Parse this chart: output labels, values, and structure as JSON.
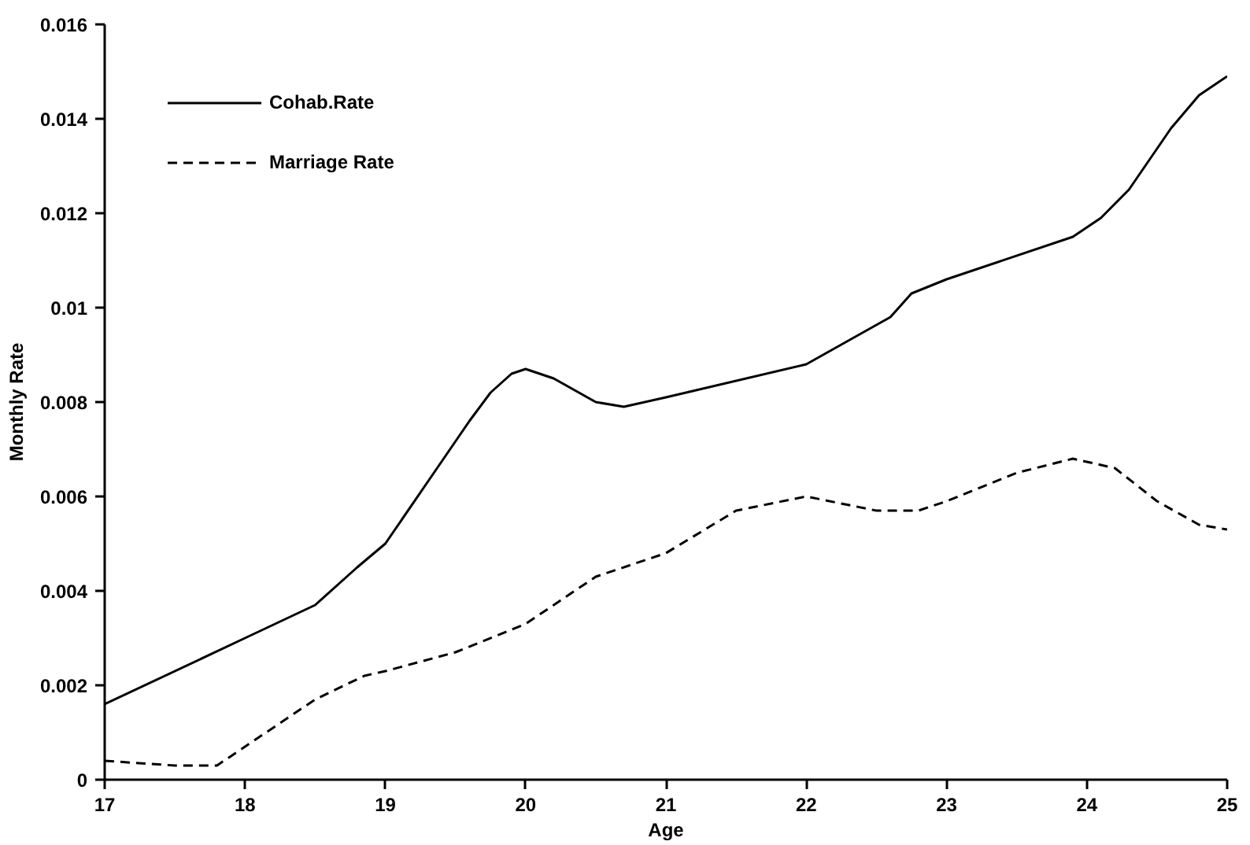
{
  "chart_data": {
    "type": "line",
    "xlabel": "Age",
    "ylabel": "Monthly Rate",
    "xlim": [
      17,
      25
    ],
    "ylim": [
      0,
      0.016
    ],
    "xticks": [
      17,
      18,
      19,
      20,
      21,
      22,
      23,
      24,
      25
    ],
    "yticks": [
      0,
      0.002,
      0.004,
      0.006,
      0.008,
      0.01,
      0.012,
      0.014,
      0.016
    ],
    "grid": false,
    "legend": "top left",
    "marker": "none",
    "series": [
      {
        "name": "Cohab.Rate",
        "color": "#000000",
        "line_style": "solid",
        "x": [
          17,
          18,
          18.5,
          18.8,
          19,
          19.3,
          19.6,
          19.75,
          19.9,
          20,
          20.2,
          20.5,
          20.7,
          21,
          22,
          22.6,
          22.75,
          23,
          23.9,
          24.1,
          24.3,
          24.6,
          24.8,
          25
        ],
        "values": [
          0.0016,
          0.003,
          0.0037,
          0.0045,
          0.005,
          0.0063,
          0.0076,
          0.0082,
          0.0086,
          0.0087,
          0.0085,
          0.008,
          0.0079,
          0.0081,
          0.0088,
          0.0098,
          0.0103,
          0.0106,
          0.0115,
          0.0119,
          0.0125,
          0.0138,
          0.0145,
          0.0149
        ]
      },
      {
        "name": "Marriage Rate",
        "color": "#000000",
        "line_style": "dashed",
        "x": [
          17,
          17.5,
          17.8,
          18,
          18.5,
          18.85,
          19,
          19.5,
          20,
          20.5,
          21,
          21.5,
          22,
          22.5,
          22.8,
          23,
          23.5,
          23.9,
          24.2,
          24.5,
          24.8,
          25
        ],
        "values": [
          0.0004,
          0.0003,
          0.0003,
          0.0007,
          0.0017,
          0.0022,
          0.0023,
          0.0027,
          0.0033,
          0.0043,
          0.0048,
          0.0057,
          0.006,
          0.0057,
          0.0057,
          0.0059,
          0.0065,
          0.0068,
          0.0066,
          0.0059,
          0.0054,
          0.0053
        ]
      }
    ]
  }
}
